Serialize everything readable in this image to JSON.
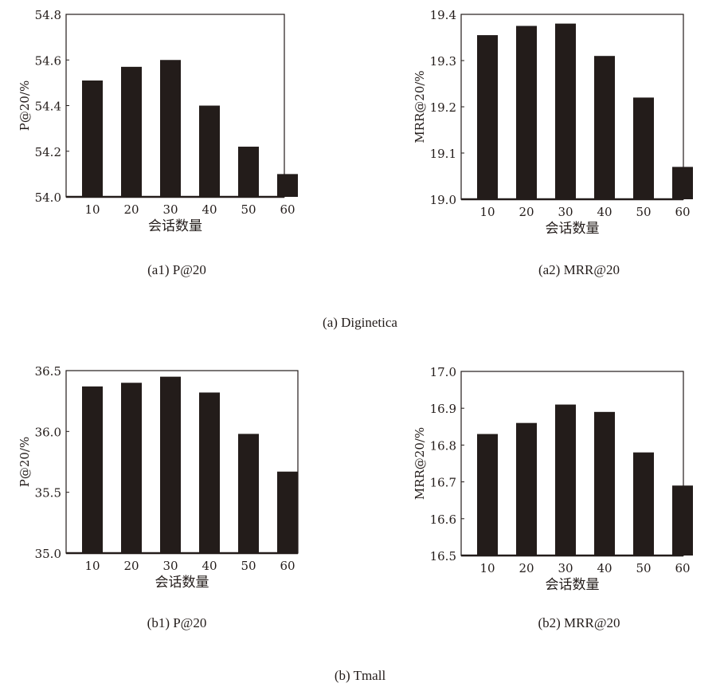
{
  "chart_data": [
    {
      "type": "bar",
      "title": "(a1) P@20",
      "xlabel": "会话数量",
      "ylabel": "P@20/%",
      "categories": [
        "10",
        "20",
        "30",
        "40",
        "50",
        "60"
      ],
      "values": [
        54.51,
        54.57,
        54.6,
        54.4,
        54.22,
        54.1
      ],
      "ylim": [
        54.0,
        54.8
      ],
      "yticks": [
        "54.0",
        "54.2",
        "54.4",
        "54.6",
        "54.8"
      ],
      "group": "(a) Diginetica"
    },
    {
      "type": "bar",
      "title": "(a2) MRR@20",
      "xlabel": "会话数量",
      "ylabel": "MRR@20/%",
      "categories": [
        "10",
        "20",
        "30",
        "40",
        "50",
        "60"
      ],
      "values": [
        19.355,
        19.375,
        19.38,
        19.31,
        19.22,
        19.07
      ],
      "ylim": [
        19.0,
        19.4
      ],
      "yticks": [
        "19.0",
        "19.1",
        "19.2",
        "19.3",
        "19.4"
      ],
      "group": "(a) Diginetica"
    },
    {
      "type": "bar",
      "title": "(b1) P@20",
      "xlabel": "会话数量",
      "ylabel": "P@20/%",
      "categories": [
        "10",
        "20",
        "30",
        "40",
        "50",
        "60"
      ],
      "values": [
        36.37,
        36.4,
        36.45,
        36.32,
        35.98,
        35.67
      ],
      "ylim": [
        35.0,
        36.5
      ],
      "yticks": [
        "35.0",
        "35.5",
        "36.0",
        "36.5"
      ],
      "group": "(b) Tmall"
    },
    {
      "type": "bar",
      "title": "(b2) MRR@20",
      "xlabel": "会话数量",
      "ylabel": "MRR@20/%",
      "categories": [
        "10",
        "20",
        "30",
        "40",
        "50",
        "60"
      ],
      "values": [
        16.83,
        16.86,
        16.91,
        16.89,
        16.78,
        16.69
      ],
      "ylim": [
        16.5,
        17.0
      ],
      "yticks": [
        "16.5",
        "16.6",
        "16.7",
        "16.8",
        "16.9",
        "17.0"
      ],
      "group": "(b) Tmall"
    }
  ],
  "captions": {
    "a1": "(a1) P@20",
    "a2": "(a2) MRR@20",
    "a": "(a) Diginetica",
    "b1": "(b1) P@20",
    "b2": "(b2) MRR@20",
    "b": "(b) Tmall"
  },
  "colors": {
    "bar": "#231c1a"
  }
}
